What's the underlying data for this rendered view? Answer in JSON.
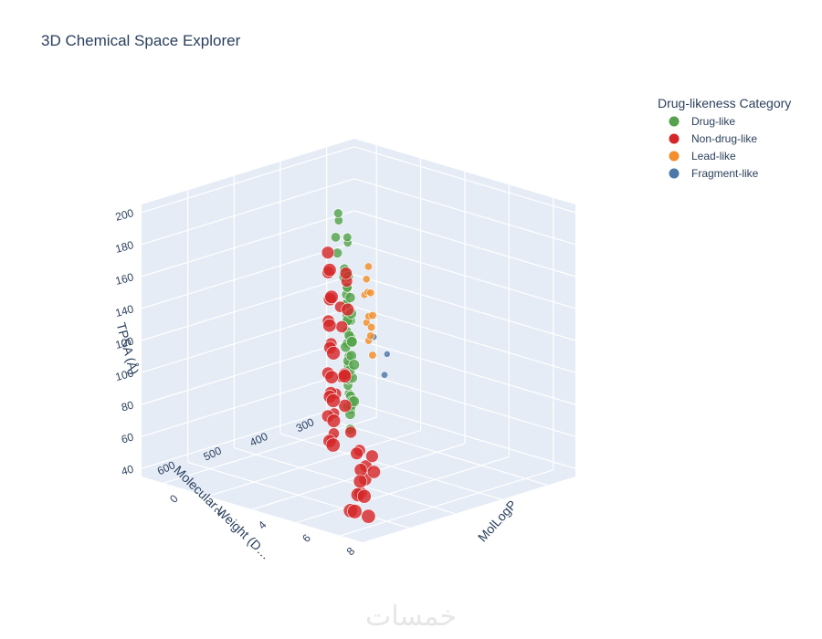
{
  "chart_data": {
    "type": "scatter",
    "subtype": "scatter3d",
    "title": "3D Chemical Space Explorer",
    "x_axis": {
      "label": "MolLogP",
      "ticks": [
        0,
        2,
        4,
        6,
        8
      ],
      "range": [
        -1,
        9
      ]
    },
    "y_axis": {
      "label": "Molecular Weight (D…",
      "ticks": [
        300,
        400,
        500,
        600
      ],
      "range": [
        240,
        700
      ]
    },
    "z_axis": {
      "label": "TPSA (Å)",
      "ticks": [
        40,
        60,
        80,
        100,
        120,
        140,
        160,
        180,
        200
      ],
      "range": [
        35,
        205
      ]
    },
    "grid": true,
    "legend": {
      "title": "Drug-likeness Category",
      "position": "top-right"
    },
    "series": [
      {
        "name": "Drug-like",
        "color": "#54a24b",
        "points": [
          [
            1.2,
            380,
            180
          ],
          [
            0.8,
            360,
            172
          ],
          [
            1.5,
            400,
            168
          ],
          [
            2.0,
            420,
            162
          ],
          [
            1.0,
            350,
            158
          ],
          [
            2.5,
            430,
            150
          ],
          [
            1.8,
            390,
            146
          ],
          [
            3.0,
            440,
            140
          ],
          [
            2.2,
            410,
            136
          ],
          [
            1.4,
            370,
            132
          ],
          [
            3.2,
            455,
            128
          ],
          [
            2.8,
            430,
            124
          ],
          [
            1.9,
            395,
            120
          ],
          [
            3.5,
            460,
            116
          ],
          [
            2.6,
            420,
            112
          ],
          [
            1.6,
            380,
            108
          ],
          [
            3.8,
            470,
            104
          ],
          [
            2.9,
            440,
            100
          ],
          [
            2.1,
            400,
            96
          ],
          [
            3.3,
            450,
            92
          ],
          [
            2.4,
            415,
            88
          ],
          [
            1.7,
            385,
            84
          ],
          [
            3.6,
            465,
            80
          ],
          [
            2.7,
            425,
            76
          ],
          [
            2.0,
            395,
            72
          ],
          [
            3.1,
            445,
            68
          ],
          [
            2.3,
            405,
            64
          ],
          [
            1.5,
            375,
            60
          ],
          [
            2.8,
            430,
            56
          ],
          [
            2.5,
            420,
            94
          ],
          [
            3.0,
            450,
            110
          ],
          [
            2.2,
            410,
            130
          ],
          [
            1.9,
            400,
            150
          ],
          [
            3.4,
            460,
            98
          ],
          [
            2.6,
            425,
            86
          ],
          [
            1.8,
            390,
            102
          ],
          [
            3.7,
            470,
            118
          ],
          [
            2.4,
            418,
            142
          ],
          [
            2.9,
            438,
            90
          ],
          [
            2.1,
            402,
            78
          ],
          [
            3.3,
            452,
            106
          ],
          [
            1.6,
            382,
            126
          ],
          [
            2.7,
            428,
            114
          ],
          [
            3.9,
            475,
            82
          ],
          [
            2.0,
            398,
            138
          ],
          [
            3.2,
            448,
            74
          ],
          [
            2.5,
            422,
            122
          ],
          [
            1.3,
            365,
            164
          ],
          [
            2.8,
            435,
            152
          ],
          [
            3.5,
            462,
            134
          ]
        ]
      },
      {
        "name": "Non-drug-like",
        "color": "#d62728",
        "points": [
          [
            4.5,
            560,
            185
          ],
          [
            5.0,
            580,
            178
          ],
          [
            4.2,
            545,
            170
          ],
          [
            5.5,
            600,
            165
          ],
          [
            4.8,
            570,
            158
          ],
          [
            3.8,
            520,
            150
          ],
          [
            5.2,
            590,
            145
          ],
          [
            4.0,
            535,
            138
          ],
          [
            5.8,
            610,
            132
          ],
          [
            4.6,
            560,
            126
          ],
          [
            3.6,
            510,
            120
          ],
          [
            5.4,
            595,
            114
          ],
          [
            4.3,
            550,
            108
          ],
          [
            6.0,
            620,
            104
          ],
          [
            4.9,
            575,
            98
          ],
          [
            3.9,
            525,
            92
          ],
          [
            5.6,
            600,
            88
          ],
          [
            4.4,
            555,
            82
          ],
          [
            6.2,
            630,
            78
          ],
          [
            5.1,
            585,
            72
          ],
          [
            6.5,
            560,
            66
          ],
          [
            7.0,
            580,
            60
          ],
          [
            6.8,
            600,
            55
          ],
          [
            7.4,
            620,
            50
          ],
          [
            6.6,
            590,
            46
          ],
          [
            7.2,
            640,
            42
          ],
          [
            6.9,
            610,
            48
          ],
          [
            7.6,
            650,
            44
          ],
          [
            7.8,
            630,
            40
          ],
          [
            6.4,
            570,
            52
          ],
          [
            5.3,
            530,
            62
          ],
          [
            5.9,
            545,
            56
          ],
          [
            4.7,
            520,
            70
          ],
          [
            5.7,
            555,
            64
          ],
          [
            6.3,
            575,
            58
          ],
          [
            4.1,
            500,
            160
          ],
          [
            4.9,
            540,
            172
          ],
          [
            5.5,
            565,
            154
          ],
          [
            3.7,
            495,
            142
          ],
          [
            4.5,
            530,
            136
          ],
          [
            6.1,
            600,
            118
          ],
          [
            5.0,
            548,
            110
          ],
          [
            4.2,
            515,
            102
          ],
          [
            5.7,
            580,
            96
          ],
          [
            3.4,
            490,
            86
          ],
          [
            2.9,
            470,
            70
          ],
          [
            3.2,
            485,
            60
          ],
          [
            2.6,
            460,
            52
          ]
        ]
      },
      {
        "name": "Lead-like",
        "color": "#f28e2b",
        "points": [
          [
            0.8,
            300,
            130
          ],
          [
            1.2,
            310,
            124
          ],
          [
            0.5,
            290,
            118
          ],
          [
            1.5,
            320,
            112
          ],
          [
            1.0,
            305,
            108
          ],
          [
            0.7,
            295,
            102
          ],
          [
            1.3,
            315,
            98
          ],
          [
            0.9,
            300,
            92
          ],
          [
            1.6,
            325,
            88
          ],
          [
            1.1,
            310,
            140
          ],
          [
            0.6,
            288,
            120
          ],
          [
            1.4,
            318,
            104
          ]
        ]
      },
      {
        "name": "Fragment-like",
        "color": "#4c78a8",
        "points": [
          [
            0.5,
            270,
            90
          ],
          [
            0.9,
            260,
            80
          ],
          [
            1.2,
            280,
            70
          ]
        ]
      }
    ]
  },
  "watermark": "خمسات"
}
